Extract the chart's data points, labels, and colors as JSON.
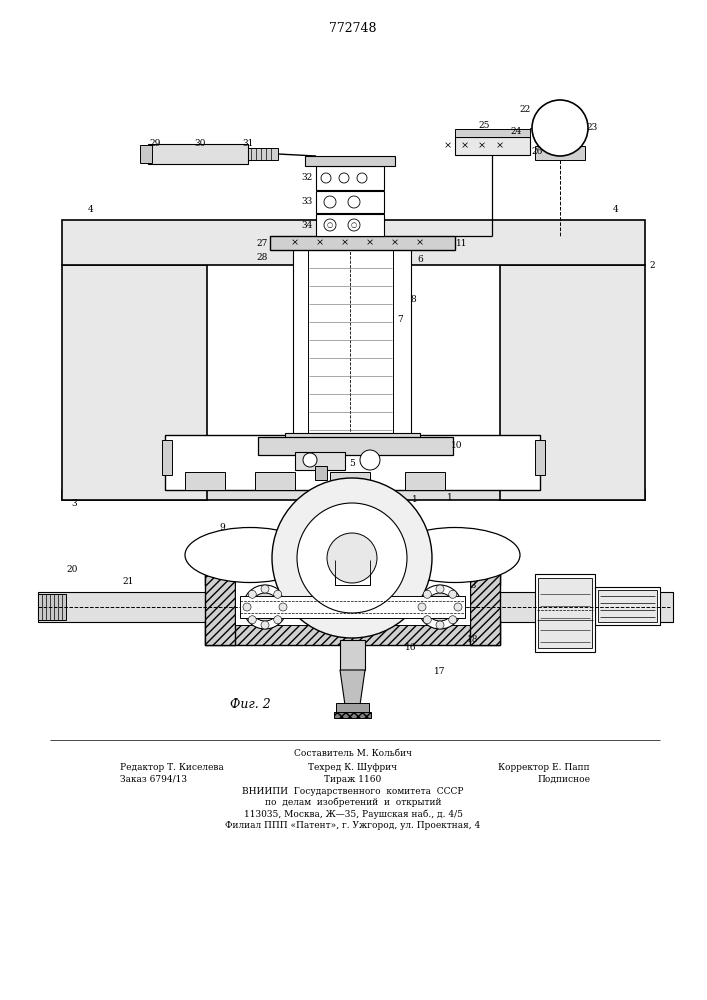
{
  "patent_number": "772748",
  "bg_color": "#ffffff",
  "footer": {
    "line1_center": "Составитель М. Кольбич",
    "line2_left": "Редактор Т. Киселева",
    "line2_center": "Техред К. Шуфрич",
    "line2_right": "Корректор Е. Папп",
    "line3_left": "Заказ 6794/13",
    "line3_center": "Тираж 1160",
    "line3_right": "Подписное",
    "line4": "ВНИИПИ  Государственного  комитета  СССР",
    "line5": "по  делам  изобретений  и  открытий",
    "line6": "113035, Москва, Ж—35, Раушская наб., д. 4/5",
    "line7": "Филиал ППП «Патент», г. Ужгород, ул. Проектная, 4"
  }
}
